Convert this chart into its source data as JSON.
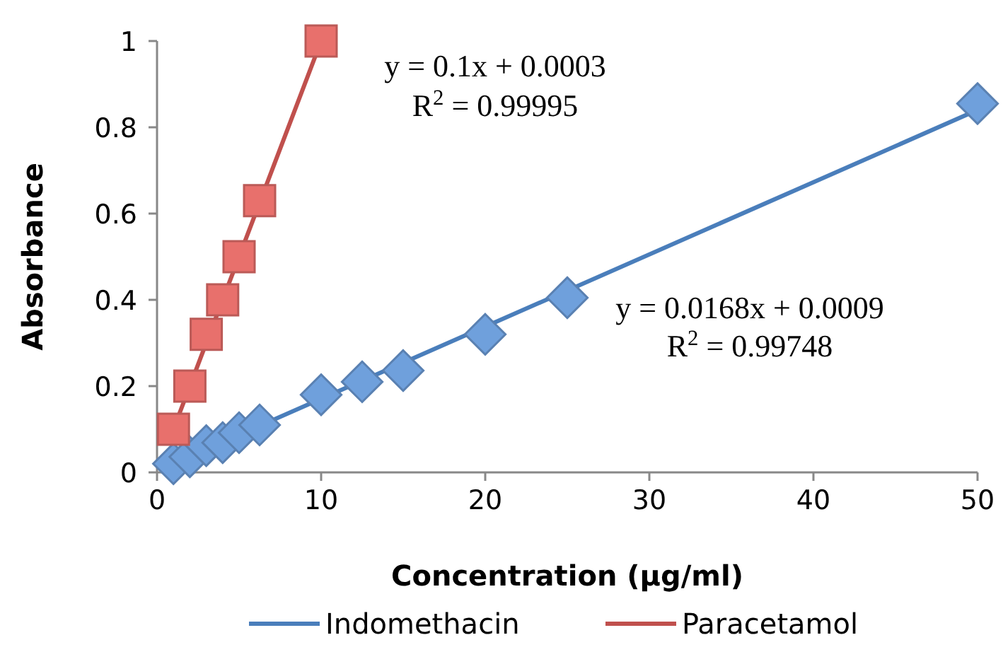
{
  "chart_data": {
    "type": "scatter",
    "xlabel": "Concentration (µg/ml)",
    "ylabel": "Absorbance",
    "xlim": [
      0,
      50
    ],
    "xticks": [
      0,
      10,
      20,
      30,
      40,
      50
    ],
    "ylim": [
      0,
      1
    ],
    "yticks": [
      0,
      0.2,
      0.4,
      0.6,
      0.8,
      1
    ],
    "grid": false,
    "legend": "bottom",
    "series": [
      {
        "type": "line",
        "name": "Indomethacin",
        "color": "#4a7ebb",
        "x": [
          1,
          50
        ],
        "values": [
          0.02,
          0.84
        ],
        "marker": "none"
      },
      {
        "type": "line",
        "name": "Paracetamol",
        "color": "#c0504d",
        "x": [
          1,
          10
        ],
        "values": [
          0.1,
          1.0
        ],
        "marker": "none"
      },
      {
        "color": "#6fa0dc",
        "marker": "diamond",
        "x": [
          1,
          2,
          3,
          4,
          5,
          6.25,
          10,
          12.5,
          15,
          20,
          25,
          50
        ],
        "values": [
          0.02,
          0.036,
          0.062,
          0.069,
          0.092,
          0.11,
          0.18,
          0.21,
          0.236,
          0.32,
          0.405,
          0.855
        ]
      },
      {
        "color": "#e8706c",
        "marker": "square",
        "x": [
          1,
          2,
          3,
          4,
          5,
          6.25,
          10
        ],
        "values": [
          0.1,
          0.2,
          0.32,
          0.4,
          0.5,
          0.63,
          1.0
        ]
      }
    ],
    "annotations": [
      "y = 0.1x + 0.0003",
      "R$^{2}$ = 0.99995",
      "y = 0.0168x + 0.0009",
      "R$^{2}$ = 0.99748"
    ]
  }
}
